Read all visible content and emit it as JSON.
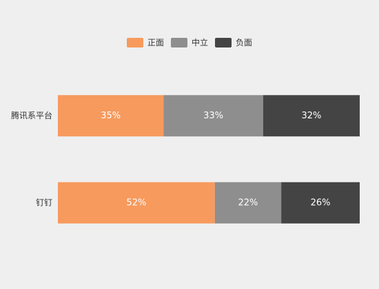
{
  "chart_data": {
    "type": "bar",
    "orientation": "horizontal",
    "stacked": true,
    "categories": [
      "腾讯系平台",
      "钉钉"
    ],
    "series": [
      {
        "name": "正面",
        "color": "#f79a5e",
        "values": [
          35,
          52
        ],
        "value_labels": [
          "35%",
          "52%"
        ]
      },
      {
        "name": "中立",
        "color": "#8e8e8e",
        "values": [
          33,
          22
        ],
        "value_labels": [
          "33%",
          "22%"
        ]
      },
      {
        "name": "负面",
        "color": "#444444",
        "values": [
          32,
          26
        ],
        "value_labels": [
          "32%",
          "26%"
        ]
      }
    ],
    "xlim": [
      0,
      100
    ],
    "legend": "top"
  }
}
